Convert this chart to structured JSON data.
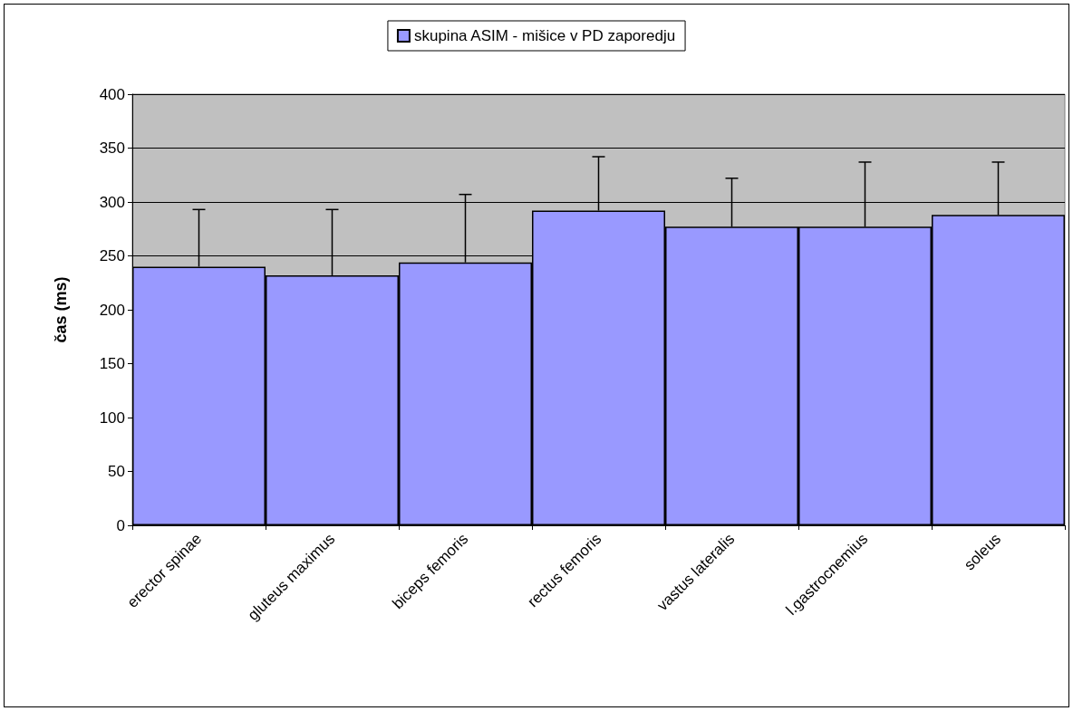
{
  "chart_data": {
    "type": "bar",
    "categories": [
      "erector spinae",
      "gluteus maximus",
      "biceps femoris",
      "rectus femoris",
      "vastus lateralis",
      "l.gastrocnemius",
      "soleus"
    ],
    "series": [
      {
        "name": "skupina ASIM - mišice v PD zaporedju",
        "color": "#9999ff",
        "values": [
          240,
          232,
          244,
          292,
          277,
          277,
          288
        ],
        "errors": [
          [
            240,
            293
          ],
          [
            232,
            293
          ],
          [
            244,
            307
          ],
          [
            292,
            342
          ],
          [
            277,
            322
          ],
          [
            277,
            337
          ],
          [
            288,
            337
          ]
        ]
      }
    ],
    "ylabel": "čas (ms)",
    "ylim": [
      0,
      400
    ],
    "yticks": [
      0,
      50,
      100,
      150,
      200,
      250,
      300,
      350,
      400
    ],
    "grid": "y",
    "legend": "top"
  }
}
